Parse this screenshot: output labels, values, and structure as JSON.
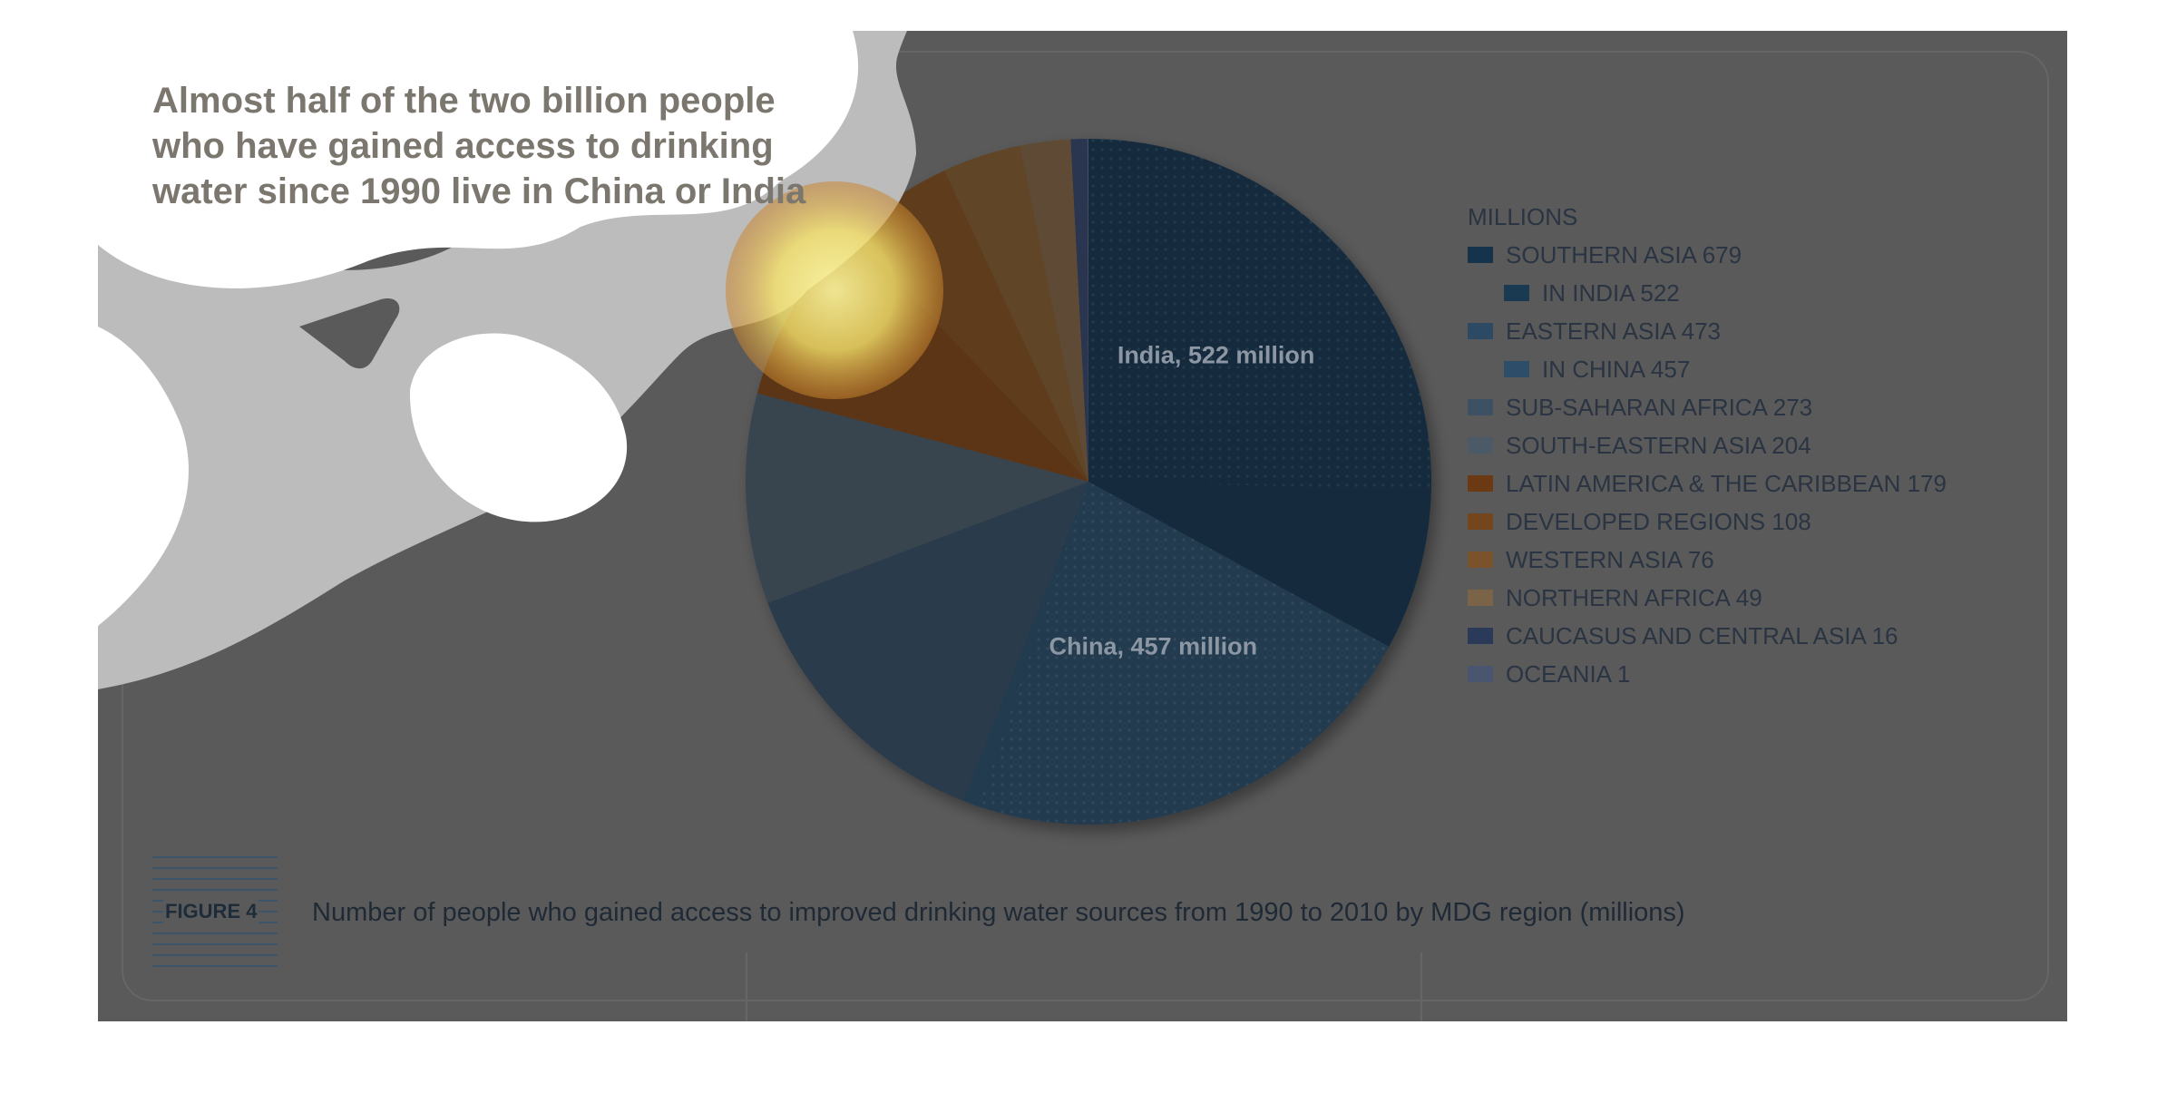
{
  "headline": "Almost half of the two billion people who have gained access to drinking water since 1990 live in China or India",
  "figure": {
    "label": "FIGURE 4",
    "caption": "Number of people who gained access to improved drinking water sources from 1990 to 2010 by MDG region (millions)"
  },
  "chart_data": {
    "type": "pie",
    "unit": "MILLIONS",
    "slices": [
      {
        "name": "SOUTHERN ASIA",
        "value": 679,
        "color": "#132b3e"
      },
      {
        "name": "EASTERN ASIA",
        "value": 473,
        "color": "#223a4f"
      },
      {
        "name": "SUB-SAHARAN AFRICA",
        "value": 273,
        "color": "#2c3b4b"
      },
      {
        "name": "SOUTH-EASTERN ASIA",
        "value": 204,
        "color": "#374450"
      },
      {
        "name": "LATIN AMERICA & THE CARIBBEAN",
        "value": 179,
        "color": "#5b3518"
      },
      {
        "name": "DEVELOPED REGIONS",
        "value": 108,
        "color": "#5e3d1f"
      },
      {
        "name": "WESTERN ASIA",
        "value": 76,
        "color": "#604426"
      },
      {
        "name": "NORTHERN AFRICA",
        "value": 49,
        "color": "#5f4c34"
      },
      {
        "name": "CAUCASUS AND CENTRAL ASIA",
        "value": 16,
        "color": "#2b3450"
      },
      {
        "name": "OCEANIA",
        "value": 1,
        "color": "#474e63"
      }
    ],
    "sub_slices": [
      {
        "name": "IN INDIA",
        "parent": "SOUTHERN ASIA",
        "value": 522,
        "label": "India, 522 million",
        "color": "#173247"
      },
      {
        "name": "IN CHINA",
        "parent": "EASTERN ASIA",
        "value": 457,
        "label": "China, 457 million",
        "color": "#27425a"
      }
    ],
    "legend": [
      {
        "text": "SOUTHERN ASIA 679",
        "color": "#15334b",
        "sub": false
      },
      {
        "text": "IN INDIA 522",
        "color": "#1a3a52",
        "sub": true
      },
      {
        "text": "EASTERN ASIA 473",
        "color": "#2c4a63",
        "sub": false
      },
      {
        "text": "IN CHINA 457",
        "color": "#2d4d68",
        "sub": true
      },
      {
        "text": "SUB-SAHARAN AFRICA 273",
        "color": "#3d5064",
        "sub": false
      },
      {
        "text": "SOUTH-EASTERN ASIA 204",
        "color": "#4c5a68",
        "sub": false
      },
      {
        "text": "LATIN AMERICA & THE CARIBBEAN 179",
        "color": "#6b3a14",
        "sub": false
      },
      {
        "text": "DEVELOPED REGIONS 108",
        "color": "#74461c",
        "sub": false
      },
      {
        "text": "WESTERN ASIA 76",
        "color": "#7a532c",
        "sub": false
      },
      {
        "text": "NORTHERN AFRICA 49",
        "color": "#7a6346",
        "sub": false
      },
      {
        "text": "CAUCASUS AND CENTRAL ASIA 16",
        "color": "#2c3a5a",
        "sub": false
      },
      {
        "text": "OCEANIA 1",
        "color": "#4a5570",
        "sub": false
      }
    ]
  }
}
